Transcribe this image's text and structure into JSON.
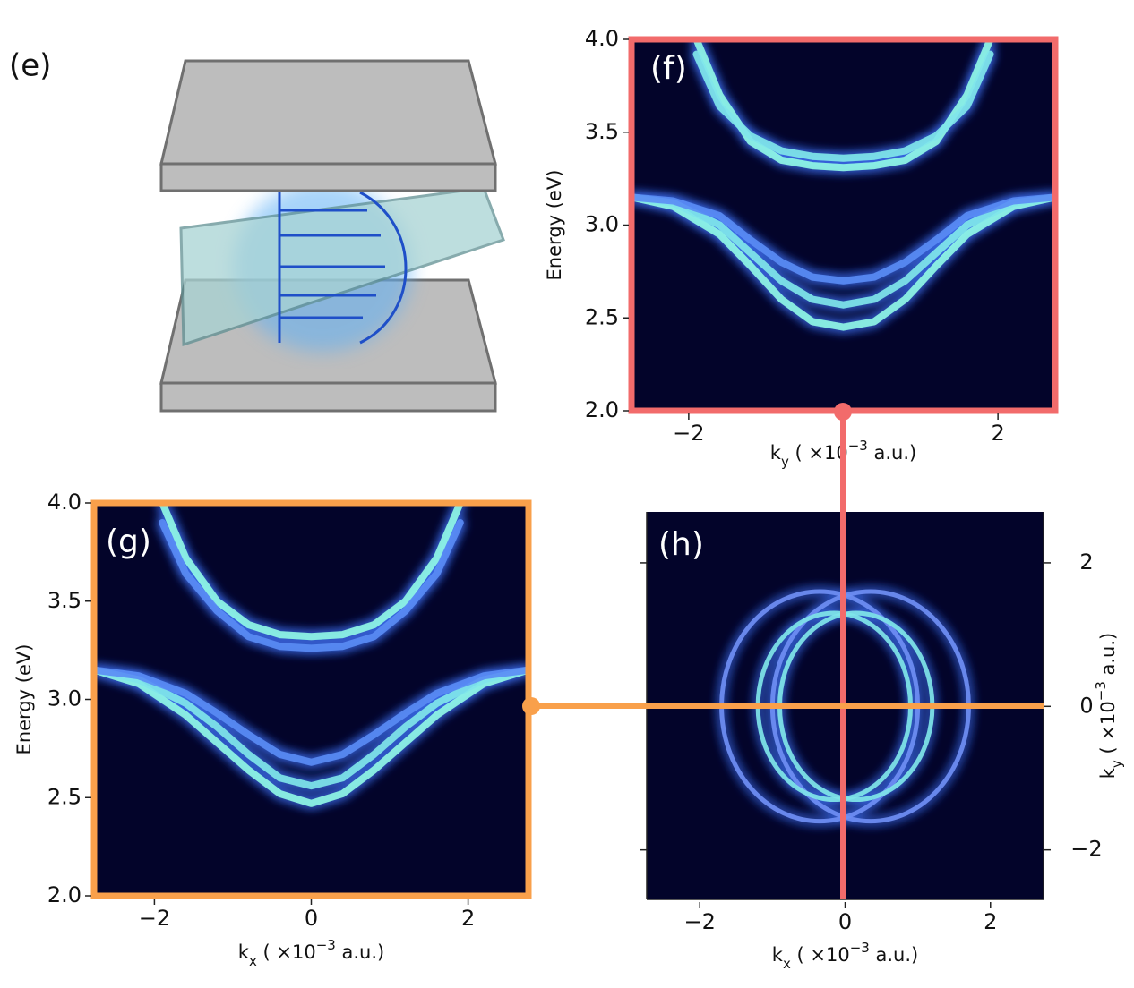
{
  "panel_e": {
    "label": "(e)"
  },
  "chart_data": [
    {
      "type": "heatmap",
      "label": "(f)",
      "xlabel": [
        "k",
        "y",
        " ( ×10",
        "−3",
        " a.u.)"
      ],
      "ylabel": "Energy (eV)",
      "xlim": [
        -2.74,
        2.74
      ],
      "ylim": [
        2,
        4
      ],
      "xticks": [
        {
          "value": -2,
          "label": "−2"
        },
        2
      ],
      "yticks": [
        {
          "value": 2,
          "label": "2.0"
        },
        2.5,
        {
          "value": 3,
          "label": "3.0"
        },
        3.5,
        {
          "value": 4,
          "label": "4.0"
        }
      ],
      "frame_color": "#f26b6b",
      "background": "#03042a",
      "series": [
        {
          "color": "#8ff6e6",
          "x": [
            -2.74,
            -2.2,
            -1.6,
            -1.2,
            -0.8,
            -0.4,
            0,
            0.4,
            0.8,
            1.2,
            1.6,
            2.2,
            2.74
          ],
          "values": [
            3.15,
            3.1,
            2.95,
            2.78,
            2.6,
            2.48,
            2.45,
            2.48,
            2.6,
            2.78,
            2.95,
            3.1,
            3.15
          ]
        },
        {
          "color": "#7fe6ea",
          "x": [
            -2.74,
            -2.2,
            -1.6,
            -1.2,
            -0.8,
            -0.4,
            0,
            0.4,
            0.8,
            1.2,
            1.6,
            2.2,
            2.74
          ],
          "values": [
            3.15,
            3.12,
            3.0,
            2.85,
            2.7,
            2.6,
            2.57,
            2.6,
            2.7,
            2.85,
            3.0,
            3.12,
            3.15
          ]
        },
        {
          "color": "#5a8cf5",
          "x": [
            -2.74,
            -2.2,
            -1.6,
            -1.2,
            -0.8,
            -0.4,
            0,
            0.4,
            0.8,
            1.2,
            1.6,
            2.2,
            2.74
          ],
          "values": [
            3.15,
            3.13,
            3.05,
            2.92,
            2.8,
            2.72,
            2.7,
            2.72,
            2.8,
            2.92,
            3.05,
            3.13,
            3.15
          ]
        },
        {
          "color": "#8ff6e6",
          "x": [
            -1.9,
            -1.6,
            -1.2,
            -0.8,
            -0.4,
            0,
            0.4,
            0.8,
            1.2,
            1.6,
            1.9
          ],
          "values": [
            4.0,
            3.7,
            3.45,
            3.35,
            3.32,
            3.31,
            3.32,
            3.35,
            3.45,
            3.7,
            4.0
          ]
        },
        {
          "color": "#7fe6ea",
          "x": [
            -1.9,
            -1.6,
            -1.2,
            -0.8,
            -0.4,
            0,
            0.4,
            0.8,
            1.2,
            1.6,
            1.9
          ],
          "values": [
            3.92,
            3.64,
            3.48,
            3.4,
            3.37,
            3.36,
            3.37,
            3.4,
            3.48,
            3.64,
            3.92
          ]
        }
      ]
    },
    {
      "type": "heatmap",
      "label": "(g)",
      "xlabel": [
        "k",
        "x",
        " ( ×10",
        "−3",
        " a.u.)"
      ],
      "ylabel": "Energy (eV)",
      "xlim": [
        -2.77,
        2.77
      ],
      "ylim": [
        2,
        4
      ],
      "xticks": [
        {
          "value": -2,
          "label": "−2"
        },
        0,
        2
      ],
      "yticks": [
        {
          "value": 2,
          "label": "2.0"
        },
        2.5,
        {
          "value": 3,
          "label": "3.0"
        },
        3.5,
        {
          "value": 4,
          "label": "4.0"
        }
      ],
      "frame_color": "#f9a04b",
      "background": "#03042a",
      "series": [
        {
          "color": "#8ff6e6",
          "x": [
            -2.77,
            -2.2,
            -1.6,
            -1.2,
            -0.8,
            -0.4,
            0,
            0.4,
            0.8,
            1.2,
            1.6,
            2.2,
            2.77
          ],
          "values": [
            3.15,
            3.08,
            2.92,
            2.78,
            2.64,
            2.52,
            2.47,
            2.52,
            2.64,
            2.78,
            2.92,
            3.08,
            3.15
          ]
        },
        {
          "color": "#7fe6ea",
          "x": [
            -2.77,
            -2.2,
            -1.6,
            -1.2,
            -0.8,
            -0.4,
            0,
            0.4,
            0.8,
            1.2,
            1.6,
            2.2,
            2.77
          ],
          "values": [
            3.15,
            3.1,
            2.98,
            2.86,
            2.72,
            2.6,
            2.56,
            2.6,
            2.72,
            2.86,
            2.98,
            3.1,
            3.15
          ]
        },
        {
          "color": "#5a8cf5",
          "x": [
            -2.77,
            -2.2,
            -1.6,
            -1.2,
            -0.8,
            -0.4,
            0,
            0.4,
            0.8,
            1.2,
            1.6,
            2.2,
            2.77
          ],
          "values": [
            3.15,
            3.12,
            3.03,
            2.93,
            2.82,
            2.72,
            2.68,
            2.72,
            2.82,
            2.93,
            3.03,
            3.12,
            3.15
          ]
        },
        {
          "color": "#8ff6e6",
          "x": [
            -1.9,
            -1.6,
            -1.2,
            -0.8,
            -0.4,
            0,
            0.4,
            0.8,
            1.2,
            1.6,
            1.9
          ],
          "values": [
            4.0,
            3.72,
            3.5,
            3.38,
            3.33,
            3.32,
            3.33,
            3.38,
            3.5,
            3.72,
            4.0
          ]
        },
        {
          "color": "#5a8cf5",
          "x": [
            -1.9,
            -1.6,
            -1.2,
            -0.8,
            -0.4,
            0,
            0.4,
            0.8,
            1.2,
            1.6,
            1.9
          ],
          "values": [
            3.9,
            3.64,
            3.45,
            3.32,
            3.27,
            3.26,
            3.27,
            3.32,
            3.45,
            3.64,
            3.9
          ]
        }
      ]
    },
    {
      "type": "rings",
      "label": "(h)",
      "xlabel": [
        "k",
        "x",
        " ( ×10",
        "−3",
        " a.u.)"
      ],
      "ylabel": [
        "k",
        "y",
        " ( ×10",
        "−3",
        " a.u.)"
      ],
      "xlim": [
        -2.73,
        2.73
      ],
      "ylim": [
        -2.69,
        2.71
      ],
      "xticks": [
        {
          "value": -2,
          "label": "−2"
        },
        0,
        2
      ],
      "yticks": [
        {
          "value": -2,
          "label": "−2"
        },
        0,
        2
      ],
      "background": "#03042a",
      "rings": [
        {
          "color": "#6f8ff5",
          "cx": -0.35,
          "rx": 1.35,
          "ry": 1.6
        },
        {
          "color": "#6f8ff5",
          "cx": 0.35,
          "rx": 1.35,
          "ry": 1.6
        },
        {
          "color": "#7fe6ea",
          "cx": -0.15,
          "rx": 1.05,
          "ry": 1.3
        },
        {
          "color": "#7fe6ea",
          "cx": 0.15,
          "rx": 1.05,
          "ry": 1.3
        }
      ]
    }
  ]
}
